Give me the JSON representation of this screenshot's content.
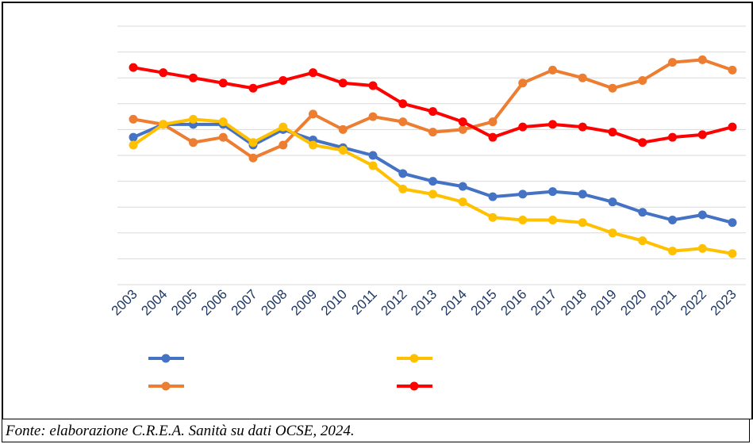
{
  "chart_data": {
    "type": "line",
    "categories": [
      "2003",
      "2004",
      "2005",
      "2006",
      "2007",
      "2008",
      "2009",
      "2010",
      "2011",
      "2012",
      "2013",
      "2014",
      "2015",
      "2016",
      "2017",
      "2018",
      "2019",
      "2020",
      "2021",
      "2022",
      "2023"
    ],
    "series": [
      {
        "color": "#4472c4",
        "values": [
          5.7,
          6.2,
          6.2,
          6.2,
          5.4,
          6.0,
          5.6,
          5.3,
          5.0,
          4.3,
          4.0,
          3.8,
          3.4,
          3.5,
          3.6,
          3.5,
          3.2,
          2.8,
          2.5,
          2.7,
          2.4
        ]
      },
      {
        "color": "#ed7d31",
        "values": [
          6.4,
          6.2,
          5.5,
          5.7,
          4.9,
          5.4,
          6.6,
          6.0,
          6.5,
          6.3,
          5.9,
          6.0,
          6.3,
          7.8,
          8.3,
          8.0,
          7.6,
          7.9,
          8.6,
          8.7,
          8.3
        ]
      },
      {
        "color": "#ffc000",
        "values": [
          5.4,
          6.2,
          6.4,
          6.3,
          5.5,
          6.1,
          5.4,
          5.2,
          4.6,
          3.7,
          3.5,
          3.2,
          2.6,
          2.5,
          2.5,
          2.4,
          2.0,
          1.7,
          1.3,
          1.4,
          1.2
        ]
      },
      {
        "color": "#ff0000",
        "values": [
          8.4,
          8.2,
          8.0,
          7.8,
          7.6,
          7.9,
          8.2,
          7.8,
          7.7,
          7.0,
          6.7,
          6.3,
          5.7,
          6.1,
          6.2,
          6.1,
          5.9,
          5.5,
          5.7,
          5.8,
          6.1
        ]
      }
    ],
    "ylim": [
      0,
      10
    ],
    "yticks": [
      0,
      1,
      2,
      3,
      4,
      5,
      6,
      7,
      8,
      9,
      10
    ],
    "grid": true
  },
  "source": "Fonte: elaborazione C.R.E.A. Sanità su dati OCSE, 2024."
}
